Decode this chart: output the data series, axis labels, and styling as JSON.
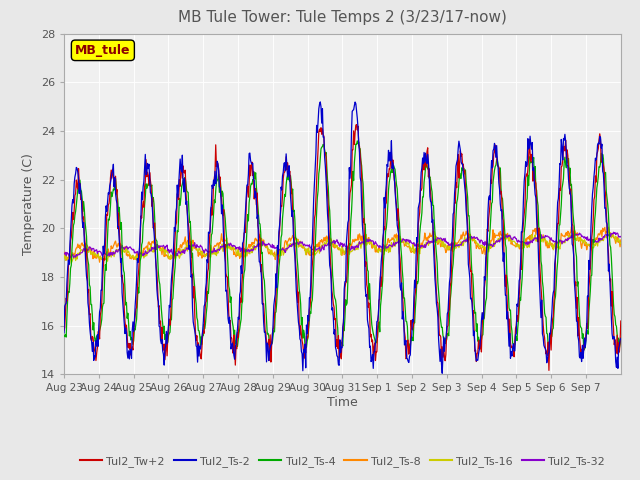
{
  "title": "MB Tule Tower: Tule Temps 2 (3/23/17-now)",
  "xlabel": "Time",
  "ylabel": "Temperature (C)",
  "ylim": [
    14,
    28
  ],
  "yticks": [
    14,
    16,
    18,
    20,
    22,
    24,
    26,
    28
  ],
  "legend_box_label": "MB_tule",
  "series_labels": [
    "Tul2_Tw+2",
    "Tul2_Ts-2",
    "Tul2_Ts-4",
    "Tul2_Ts-8",
    "Tul2_Ts-16",
    "Tul2_Ts-32"
  ],
  "series_colors": [
    "#cc0000",
    "#0000cc",
    "#00aa00",
    "#ff8800",
    "#cccc00",
    "#8800cc"
  ],
  "n_days": 16,
  "xtick_labels": [
    "Aug 23",
    "Aug 24",
    "Aug 25",
    "Aug 26",
    "Aug 27",
    "Aug 28",
    "Aug 29",
    "Aug 30",
    "Aug 31",
    "Sep 1",
    "Sep 2",
    "Sep 3",
    "Sep 4",
    "Sep 5",
    "Sep 6",
    "Sep 7"
  ],
  "background_color": "#e8e8e8",
  "plot_bg_color": "#f0f0f0",
  "title_color": "#555555",
  "axis_label_color": "#555555",
  "tick_color": "#555555"
}
